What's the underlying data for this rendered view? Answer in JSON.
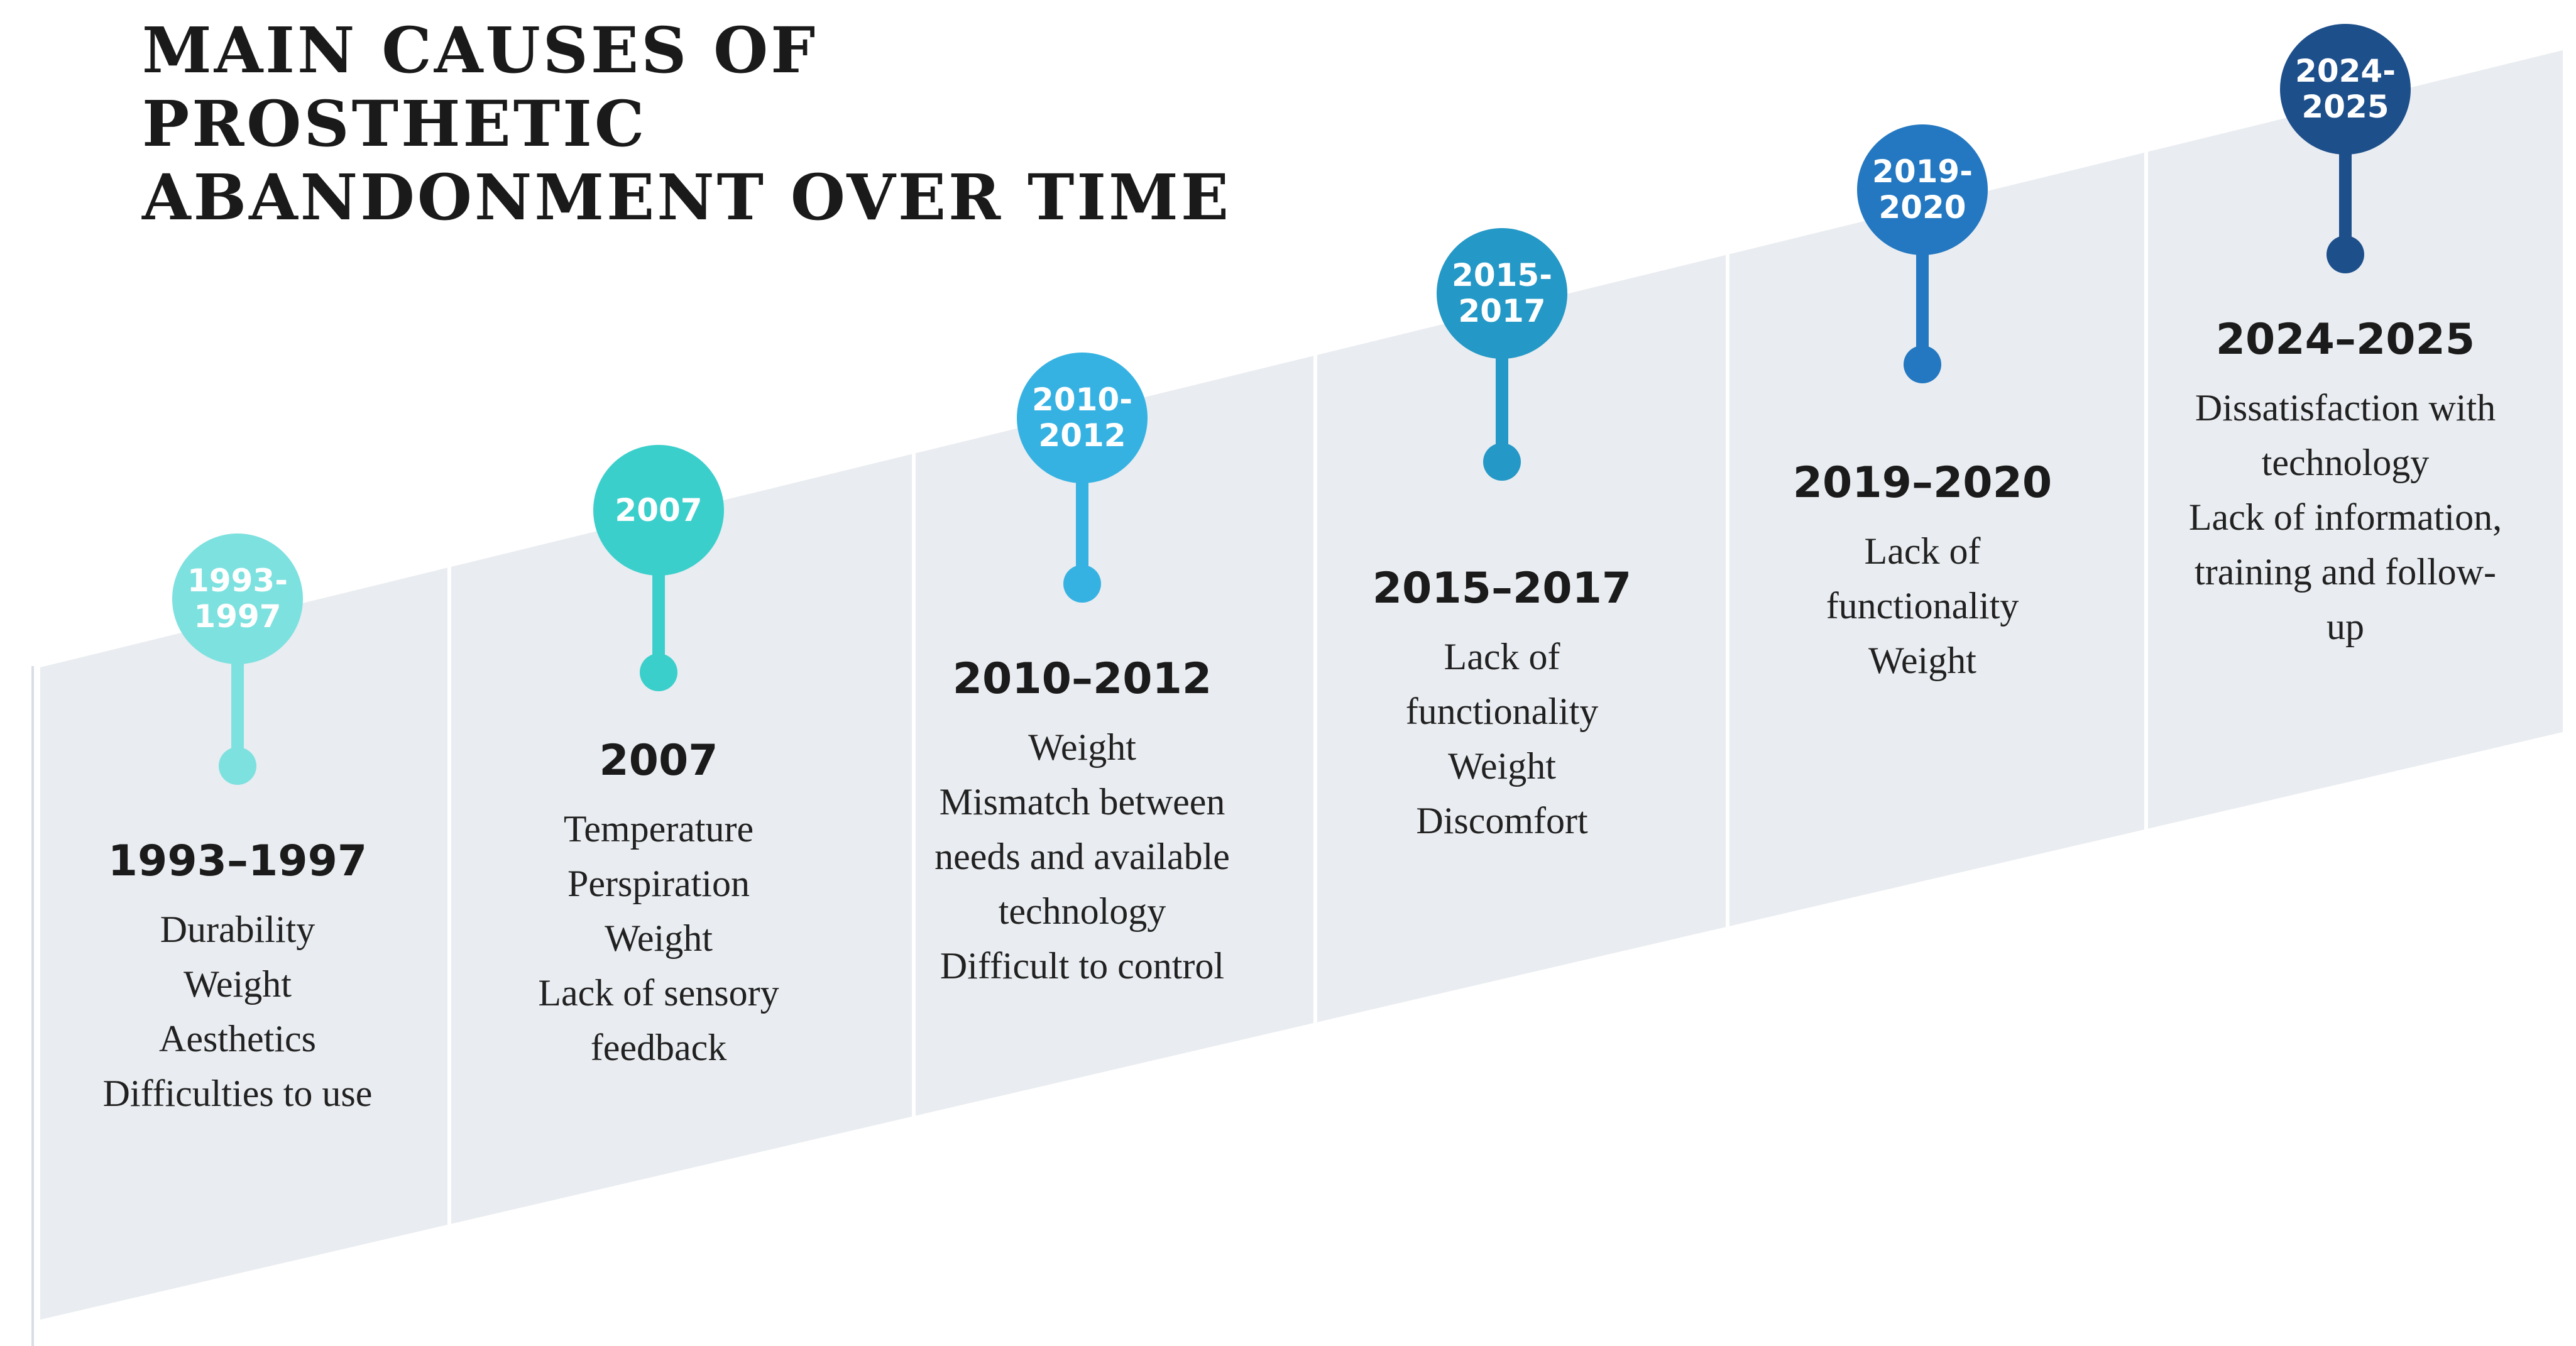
{
  "title": {
    "line1": "MAIN CAUSES OF",
    "line2": "PROSTHETIC",
    "line3": "ABANDONMENT OVER TIME"
  },
  "entries": [
    {
      "bubble_line1": "1993-",
      "bubble_line2": "1997",
      "heading": "1993–1997",
      "causes": [
        "Durability",
        "Weight",
        "Aesthetics",
        "Difficulties to use"
      ],
      "color": "#7de1df"
    },
    {
      "bubble_line1": "2007",
      "bubble_line2": "",
      "heading": "2007",
      "causes": [
        "Temperature",
        "Perspiration",
        "Weight",
        "Lack of sensory feedback"
      ],
      "color": "#3bcfcc"
    },
    {
      "bubble_line1": "2010-",
      "bubble_line2": "2012",
      "heading": "2010–2012",
      "causes": [
        "Weight",
        "Mismatch between needs and available technology",
        "Difficult to control"
      ],
      "color": "#36b2e2"
    },
    {
      "bubble_line1": "2015-",
      "bubble_line2": "2017",
      "heading": "2015–2017",
      "causes": [
        "Lack of functionality",
        "Weight",
        "Discomfort"
      ],
      "color": "#2498c6"
    },
    {
      "bubble_line1": "2019-",
      "bubble_line2": "2020",
      "heading": "2019–2020",
      "causes": [
        "Lack of functionality",
        "Weight"
      ],
      "color": "#2378c1"
    },
    {
      "bubble_line1": "2024-",
      "bubble_line2": "2025",
      "heading": "2024–2025",
      "causes": [
        "Dissatisfaction with technology",
        "Lack of information, training and follow-up"
      ],
      "color": "#1d4f8b"
    }
  ],
  "colors": {
    "band": "#e9ecf0",
    "divider": "#ffffff",
    "title_text": "#1a1a1a",
    "heading_text": "#1b1b1b",
    "body_text": "#212121"
  }
}
